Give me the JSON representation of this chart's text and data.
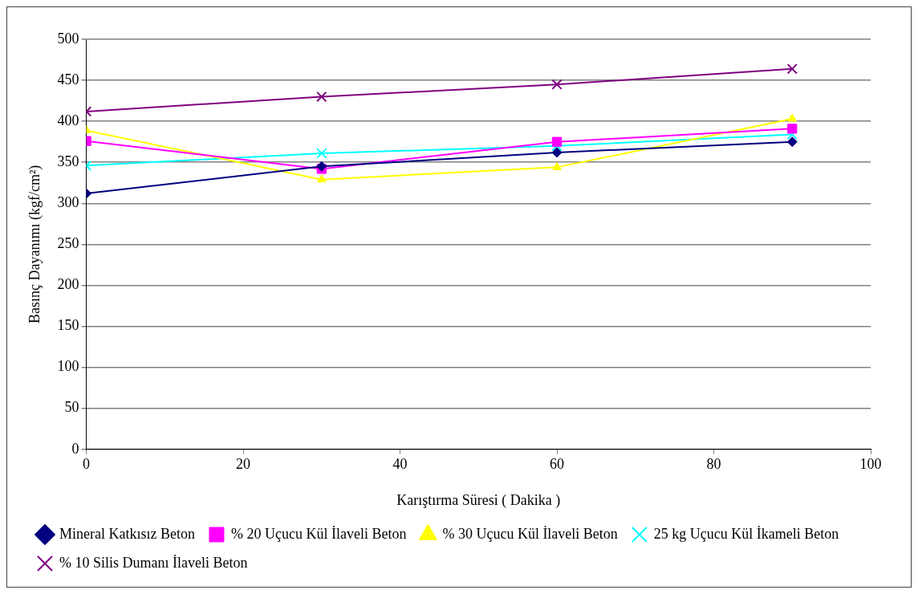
{
  "chart_data": {
    "type": "line",
    "xlabel": "Karıştırma Süresi ( Dakika )",
    "ylabel": "Basınç Dayanımı (kgf/cm²)",
    "x": [
      0,
      30,
      60,
      90
    ],
    "xlim": [
      0,
      100
    ],
    "xticks": [
      0,
      20,
      40,
      60,
      80,
      100
    ],
    "ylim": [
      0,
      500
    ],
    "yticks": [
      0,
      50,
      100,
      150,
      200,
      250,
      300,
      350,
      400,
      450,
      500
    ],
    "grid": "y",
    "legend": "bottom",
    "series": [
      {
        "name": "Mineral Katkısız Beton",
        "color": "#000080",
        "marker": "diamond",
        "values": [
          312,
          345,
          362,
          375
        ]
      },
      {
        "name": "% 20 Uçucu Kül İlaveli Beton",
        "color": "#ff00ff",
        "marker": "square",
        "values": [
          376,
          342,
          375,
          391
        ]
      },
      {
        "name": "% 30 Uçucu Kül İlaveli Beton",
        "color": "#ffff00",
        "marker": "triangle",
        "values": [
          389,
          329,
          344,
          403
        ]
      },
      {
        "name": "25 kg Uçucu Kül İkameli Beton",
        "color": "#00ffff",
        "marker": "cross",
        "values": [
          346,
          361,
          370,
          384
        ]
      },
      {
        "name": "% 10 Silis Dumanı İlaveli Beton",
        "color": "#800080",
        "marker": "cross",
        "values": [
          412,
          430,
          445,
          464
        ]
      }
    ]
  }
}
